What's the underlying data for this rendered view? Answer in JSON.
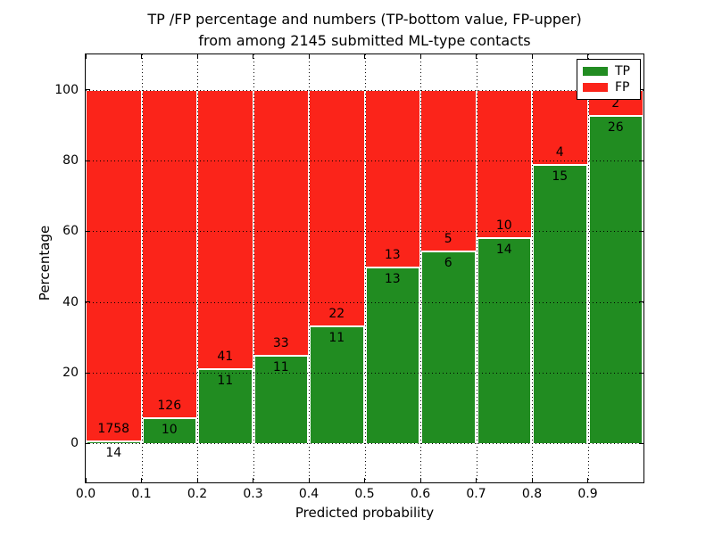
{
  "figure": {
    "title_line1": "TP /FP percentage and numbers (TP-bottom value, FP-upper)",
    "title_line2": "from among 2145 submitted ML-type contacts",
    "background_color": "#ffffff"
  },
  "chart_data": {
    "type": "bar",
    "stacked": true,
    "normalized_to_percent": true,
    "bin_edges": [
      0.0,
      0.1,
      0.2,
      0.3,
      0.4,
      0.5,
      0.6,
      0.7,
      0.8,
      0.9,
      1.0
    ],
    "series": [
      {
        "name": "TP",
        "color": "#218c21",
        "counts": [
          14,
          10,
          11,
          11,
          11,
          13,
          6,
          14,
          15,
          26
        ]
      },
      {
        "name": "FP",
        "color": "#fb241a",
        "counts": [
          1758,
          126,
          41,
          33,
          22,
          13,
          5,
          10,
          4,
          2
        ]
      }
    ],
    "annotation_note": "TP-bottom value, FP-upper",
    "total_contacts": 2145,
    "xlabel": "Predicted probability",
    "ylabel": "Percentage",
    "xlim": [
      0.0,
      1.0
    ],
    "ylim": [
      -11,
      110
    ],
    "xticks": [
      0.0,
      0.1,
      0.2,
      0.3,
      0.4,
      0.5,
      0.6,
      0.7,
      0.8,
      0.9
    ],
    "yticks": [
      0,
      20,
      40,
      60,
      80,
      100
    ],
    "grid_style": "dotted",
    "grid_color": "#000000",
    "bar_edge_color": "#ffffff",
    "legend_position": "upper right",
    "text_color": "#000000"
  }
}
